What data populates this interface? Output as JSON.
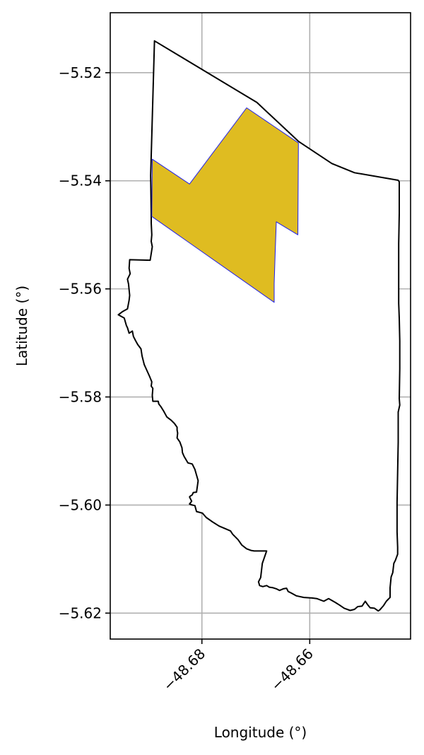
{
  "chart_data": {
    "type": "map",
    "xlabel": "Longitude (°)",
    "ylabel": "Latitude (°)",
    "xlim": [
      -48.697,
      -48.6413
    ],
    "ylim": [
      -5.6248,
      -5.5089
    ],
    "xticks": [
      {
        "value": -48.68,
        "label": "−48.68"
      },
      {
        "value": -48.66,
        "label": "−48.66"
      }
    ],
    "yticks": [
      {
        "value": -5.52,
        "label": "−5.52"
      },
      {
        "value": -5.54,
        "label": "−5.54"
      },
      {
        "value": -5.56,
        "label": "−5.56"
      },
      {
        "value": -5.58,
        "label": "−5.58"
      },
      {
        "value": -5.6,
        "label": "−5.60"
      },
      {
        "value": -5.62,
        "label": "−5.62"
      }
    ],
    "grid": true,
    "xtick_rotation": 45,
    "boundary": {
      "fill": "#ffffff",
      "stroke": "#000000",
      "coords": [
        [
          -48.6888,
          -5.5141
        ],
        [
          -48.6698,
          -5.5255
        ],
        [
          -48.6621,
          -5.5327
        ],
        [
          -48.6559,
          -5.5368
        ],
        [
          -48.6517,
          -5.5385
        ],
        [
          -48.6436,
          -5.5399
        ],
        [
          -48.6434,
          -5.5402
        ],
        [
          -48.6434,
          -5.546
        ],
        [
          -48.6435,
          -5.5516
        ],
        [
          -48.6435,
          -5.5571
        ],
        [
          -48.6435,
          -5.5627
        ],
        [
          -48.6434,
          -5.5655
        ],
        [
          -48.6433,
          -5.5696
        ],
        [
          -48.6433,
          -5.5748
        ],
        [
          -48.6434,
          -5.5803
        ],
        [
          -48.6433,
          -5.5815
        ],
        [
          -48.6436,
          -5.5828
        ],
        [
          -48.6436,
          -5.5884
        ],
        [
          -48.6437,
          -5.5939
        ],
        [
          -48.6438,
          -5.5995
        ],
        [
          -48.6438,
          -5.605
        ],
        [
          -48.6437,
          -5.6078
        ],
        [
          -48.6437,
          -5.6091
        ],
        [
          -48.6441,
          -5.6102
        ],
        [
          -48.6444,
          -5.6108
        ],
        [
          -48.6446,
          -5.6125
        ],
        [
          -48.6449,
          -5.6133
        ],
        [
          -48.6451,
          -5.6153
        ],
        [
          -48.6451,
          -5.6171
        ],
        [
          -48.6458,
          -5.6178
        ],
        [
          -48.6463,
          -5.6186
        ],
        [
          -48.647,
          -5.6194
        ],
        [
          -48.6473,
          -5.6196
        ],
        [
          -48.648,
          -5.6191
        ],
        [
          -48.6488,
          -5.619
        ],
        [
          -48.6493,
          -5.6184
        ],
        [
          -48.6497,
          -5.6178
        ],
        [
          -48.6503,
          -5.6187
        ],
        [
          -48.6511,
          -5.6188
        ],
        [
          -48.6517,
          -5.6193
        ],
        [
          -48.6525,
          -5.6195
        ],
        [
          -48.6536,
          -5.6191
        ],
        [
          -48.6545,
          -5.6185
        ],
        [
          -48.6553,
          -5.618
        ],
        [
          -48.6565,
          -5.6173
        ],
        [
          -48.6574,
          -5.6178
        ],
        [
          -48.6587,
          -5.6173
        ],
        [
          -48.6596,
          -5.6172
        ],
        [
          -48.6611,
          -5.6171
        ],
        [
          -48.6625,
          -5.6168
        ],
        [
          -48.6634,
          -5.6163
        ],
        [
          -48.664,
          -5.616
        ],
        [
          -48.6643,
          -5.6154
        ],
        [
          -48.6649,
          -5.6155
        ],
        [
          -48.6656,
          -5.6158
        ],
        [
          -48.6662,
          -5.6155
        ],
        [
          -48.6668,
          -5.6153
        ],
        [
          -48.6675,
          -5.6152
        ],
        [
          -48.668,
          -5.6149
        ],
        [
          -48.6687,
          -5.6151
        ],
        [
          -48.6693,
          -5.6149
        ],
        [
          -48.6695,
          -5.6142
        ],
        [
          -48.6691,
          -5.6134
        ],
        [
          -48.6688,
          -5.6108
        ],
        [
          -48.668,
          -5.6085
        ],
        [
          -48.6703,
          -5.6085
        ],
        [
          -48.6709,
          -5.6084
        ],
        [
          -48.6717,
          -5.6081
        ],
        [
          -48.6726,
          -5.6074
        ],
        [
          -48.6733,
          -5.6064
        ],
        [
          -48.6743,
          -5.6054
        ],
        [
          -48.6747,
          -5.6048
        ],
        [
          -48.6756,
          -5.6044
        ],
        [
          -48.6768,
          -5.6039
        ],
        [
          -48.6779,
          -5.6032
        ],
        [
          -48.6792,
          -5.6023
        ],
        [
          -48.6799,
          -5.6015
        ],
        [
          -48.681,
          -5.6012
        ],
        [
          -48.6813,
          -5.6001
        ],
        [
          -48.6818,
          -5.6
        ],
        [
          -48.6823,
          -5.5998
        ],
        [
          -48.6819,
          -5.5993
        ],
        [
          -48.6823,
          -5.5985
        ],
        [
          -48.6821,
          -5.5983
        ],
        [
          -48.6819,
          -5.5982
        ],
        [
          -48.6818,
          -5.5981
        ],
        [
          -48.6816,
          -5.5977
        ],
        [
          -48.681,
          -5.5976
        ],
        [
          -48.6807,
          -5.5955
        ],
        [
          -48.6813,
          -5.5934
        ],
        [
          -48.6818,
          -5.5924
        ],
        [
          -48.6826,
          -5.5922
        ],
        [
          -48.6833,
          -5.591
        ],
        [
          -48.6836,
          -5.5903
        ],
        [
          -48.6837,
          -5.5894
        ],
        [
          -48.6841,
          -5.5883
        ],
        [
          -48.6846,
          -5.5876
        ],
        [
          -48.6845,
          -5.5867
        ],
        [
          -48.6846,
          -5.5861
        ],
        [
          -48.6846,
          -5.5856
        ],
        [
          -48.6851,
          -5.5849
        ],
        [
          -48.6857,
          -5.5843
        ],
        [
          -48.6865,
          -5.5837
        ],
        [
          -48.6871,
          -5.5826
        ],
        [
          -48.6876,
          -5.5818
        ],
        [
          -48.688,
          -5.5813
        ],
        [
          -48.6881,
          -5.5808
        ],
        [
          -48.6891,
          -5.5808
        ],
        [
          -48.6892,
          -5.5797
        ],
        [
          -48.6891,
          -5.5784
        ],
        [
          -48.6894,
          -5.578
        ],
        [
          -48.6893,
          -5.5772
        ],
        [
          -48.6897,
          -5.5762
        ],
        [
          -48.6902,
          -5.5751
        ],
        [
          -48.6907,
          -5.574
        ],
        [
          -48.6911,
          -5.5724
        ],
        [
          -48.6913,
          -5.5711
        ],
        [
          -48.6919,
          -5.5703
        ],
        [
          -48.6923,
          -5.5696
        ],
        [
          -48.6927,
          -5.5688
        ],
        [
          -48.6929,
          -5.5678
        ],
        [
          -48.6935,
          -5.5682
        ],
        [
          -48.6938,
          -5.5672
        ],
        [
          -48.694,
          -5.5668
        ],
        [
          -48.6944,
          -5.5654
        ],
        [
          -48.6955,
          -5.5648
        ],
        [
          -48.6947,
          -5.5642
        ],
        [
          -48.6938,
          -5.5637
        ],
        [
          -48.6935,
          -5.5621
        ],
        [
          -48.6934,
          -5.5612
        ],
        [
          -48.6936,
          -5.5591
        ],
        [
          -48.6938,
          -5.5582
        ],
        [
          -48.6933,
          -5.5572
        ],
        [
          -48.6935,
          -5.5562
        ],
        [
          -48.6934,
          -5.5546
        ],
        [
          -48.6896,
          -5.5547
        ],
        [
          -48.6892,
          -5.5522
        ],
        [
          -48.6894,
          -5.5512
        ],
        [
          -48.6893,
          -5.55
        ],
        [
          -48.6894,
          -5.5478
        ],
        [
          -48.6894,
          -5.546
        ],
        [
          -48.6895,
          -5.539
        ],
        [
          -48.6888,
          -5.5141
        ]
      ]
    },
    "highlight": {
      "fill": "#dfbc21",
      "stroke": "#2020ee",
      "coords": [
        [
          -48.6892,
          -5.536
        ],
        [
          -48.6823,
          -5.5406
        ],
        [
          -48.6717,
          -5.5265
        ],
        [
          -48.6621,
          -5.533
        ],
        [
          -48.6622,
          -5.55
        ],
        [
          -48.6662,
          -5.5476
        ],
        [
          -48.6664,
          -5.553
        ],
        [
          -48.6666,
          -5.559
        ],
        [
          -48.6666,
          -5.5625
        ],
        [
          -48.6893,
          -5.5466
        ]
      ]
    }
  }
}
